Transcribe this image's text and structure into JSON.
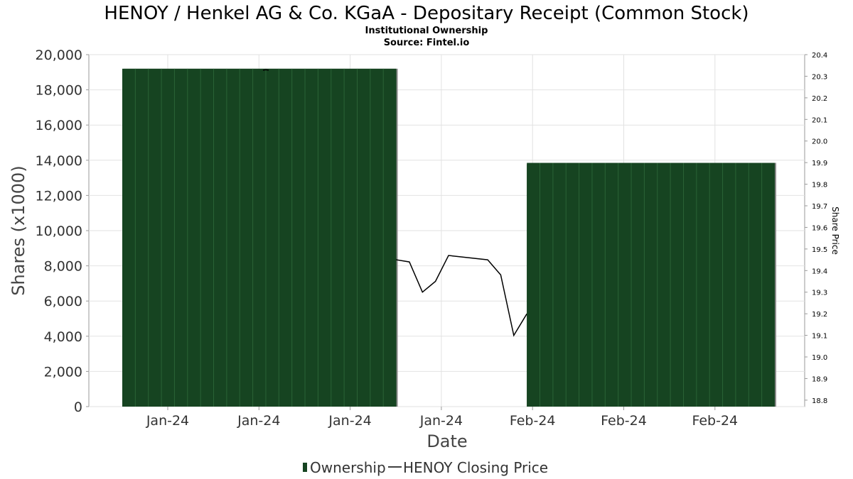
{
  "chart_data": {
    "type": "bar",
    "title": "HENOY / Henkel AG & Co. KGaA - Depositary Receipt (Common Stock)",
    "subtitle_lines": [
      "Institutional Ownership",
      "Source: Fintel.io"
    ],
    "xlabel": "Date",
    "ylabel": "Shares (x1000)",
    "y2label": "Share Price",
    "ylim": [
      0,
      20000
    ],
    "y2lim": [
      18.77,
      20.4
    ],
    "yticks": [
      "0",
      "2,000",
      "4,000",
      "6,000",
      "8,000",
      "10,000",
      "12,000",
      "14,000",
      "16,000",
      "18,000",
      "20,000"
    ],
    "y2ticks": [
      "18.8",
      "18.9",
      "19.0",
      "19.1",
      "19.2",
      "19.3",
      "19.4",
      "19.5",
      "19.6",
      "19.7",
      "19.8",
      "19.9",
      "20.0",
      "20.1",
      "20.2",
      "20.3",
      "20.4"
    ],
    "xticks": [
      "Jan-24",
      "Jan-24",
      "Jan-24",
      "Jan-24",
      "Feb-24",
      "Feb-24",
      "Feb-24"
    ],
    "grid": true,
    "legend_placement": "bottom-center",
    "ownership": {
      "name": "Ownership",
      "color": "#164421",
      "bars": [
        {
          "start_day": 0,
          "end_day": 21,
          "value": 19200
        },
        {
          "start_day": 31,
          "end_day": 50,
          "value": 13850
        }
      ]
    },
    "price": {
      "name": "HENOY Closing Price",
      "color": "#000000",
      "points": [
        {
          "day": 11,
          "value": 20.33
        },
        {
          "day": 21,
          "value": 19.45
        },
        {
          "day": 22,
          "value": 19.44
        },
        {
          "day": 23,
          "value": 19.3
        },
        {
          "day": 24,
          "value": 19.35
        },
        {
          "day": 25,
          "value": 19.47
        },
        {
          "day": 28,
          "value": 19.45
        },
        {
          "day": 29,
          "value": 19.38
        },
        {
          "day": 30,
          "value": 19.1
        },
        {
          "day": 31,
          "value": 19.2
        }
      ]
    }
  }
}
